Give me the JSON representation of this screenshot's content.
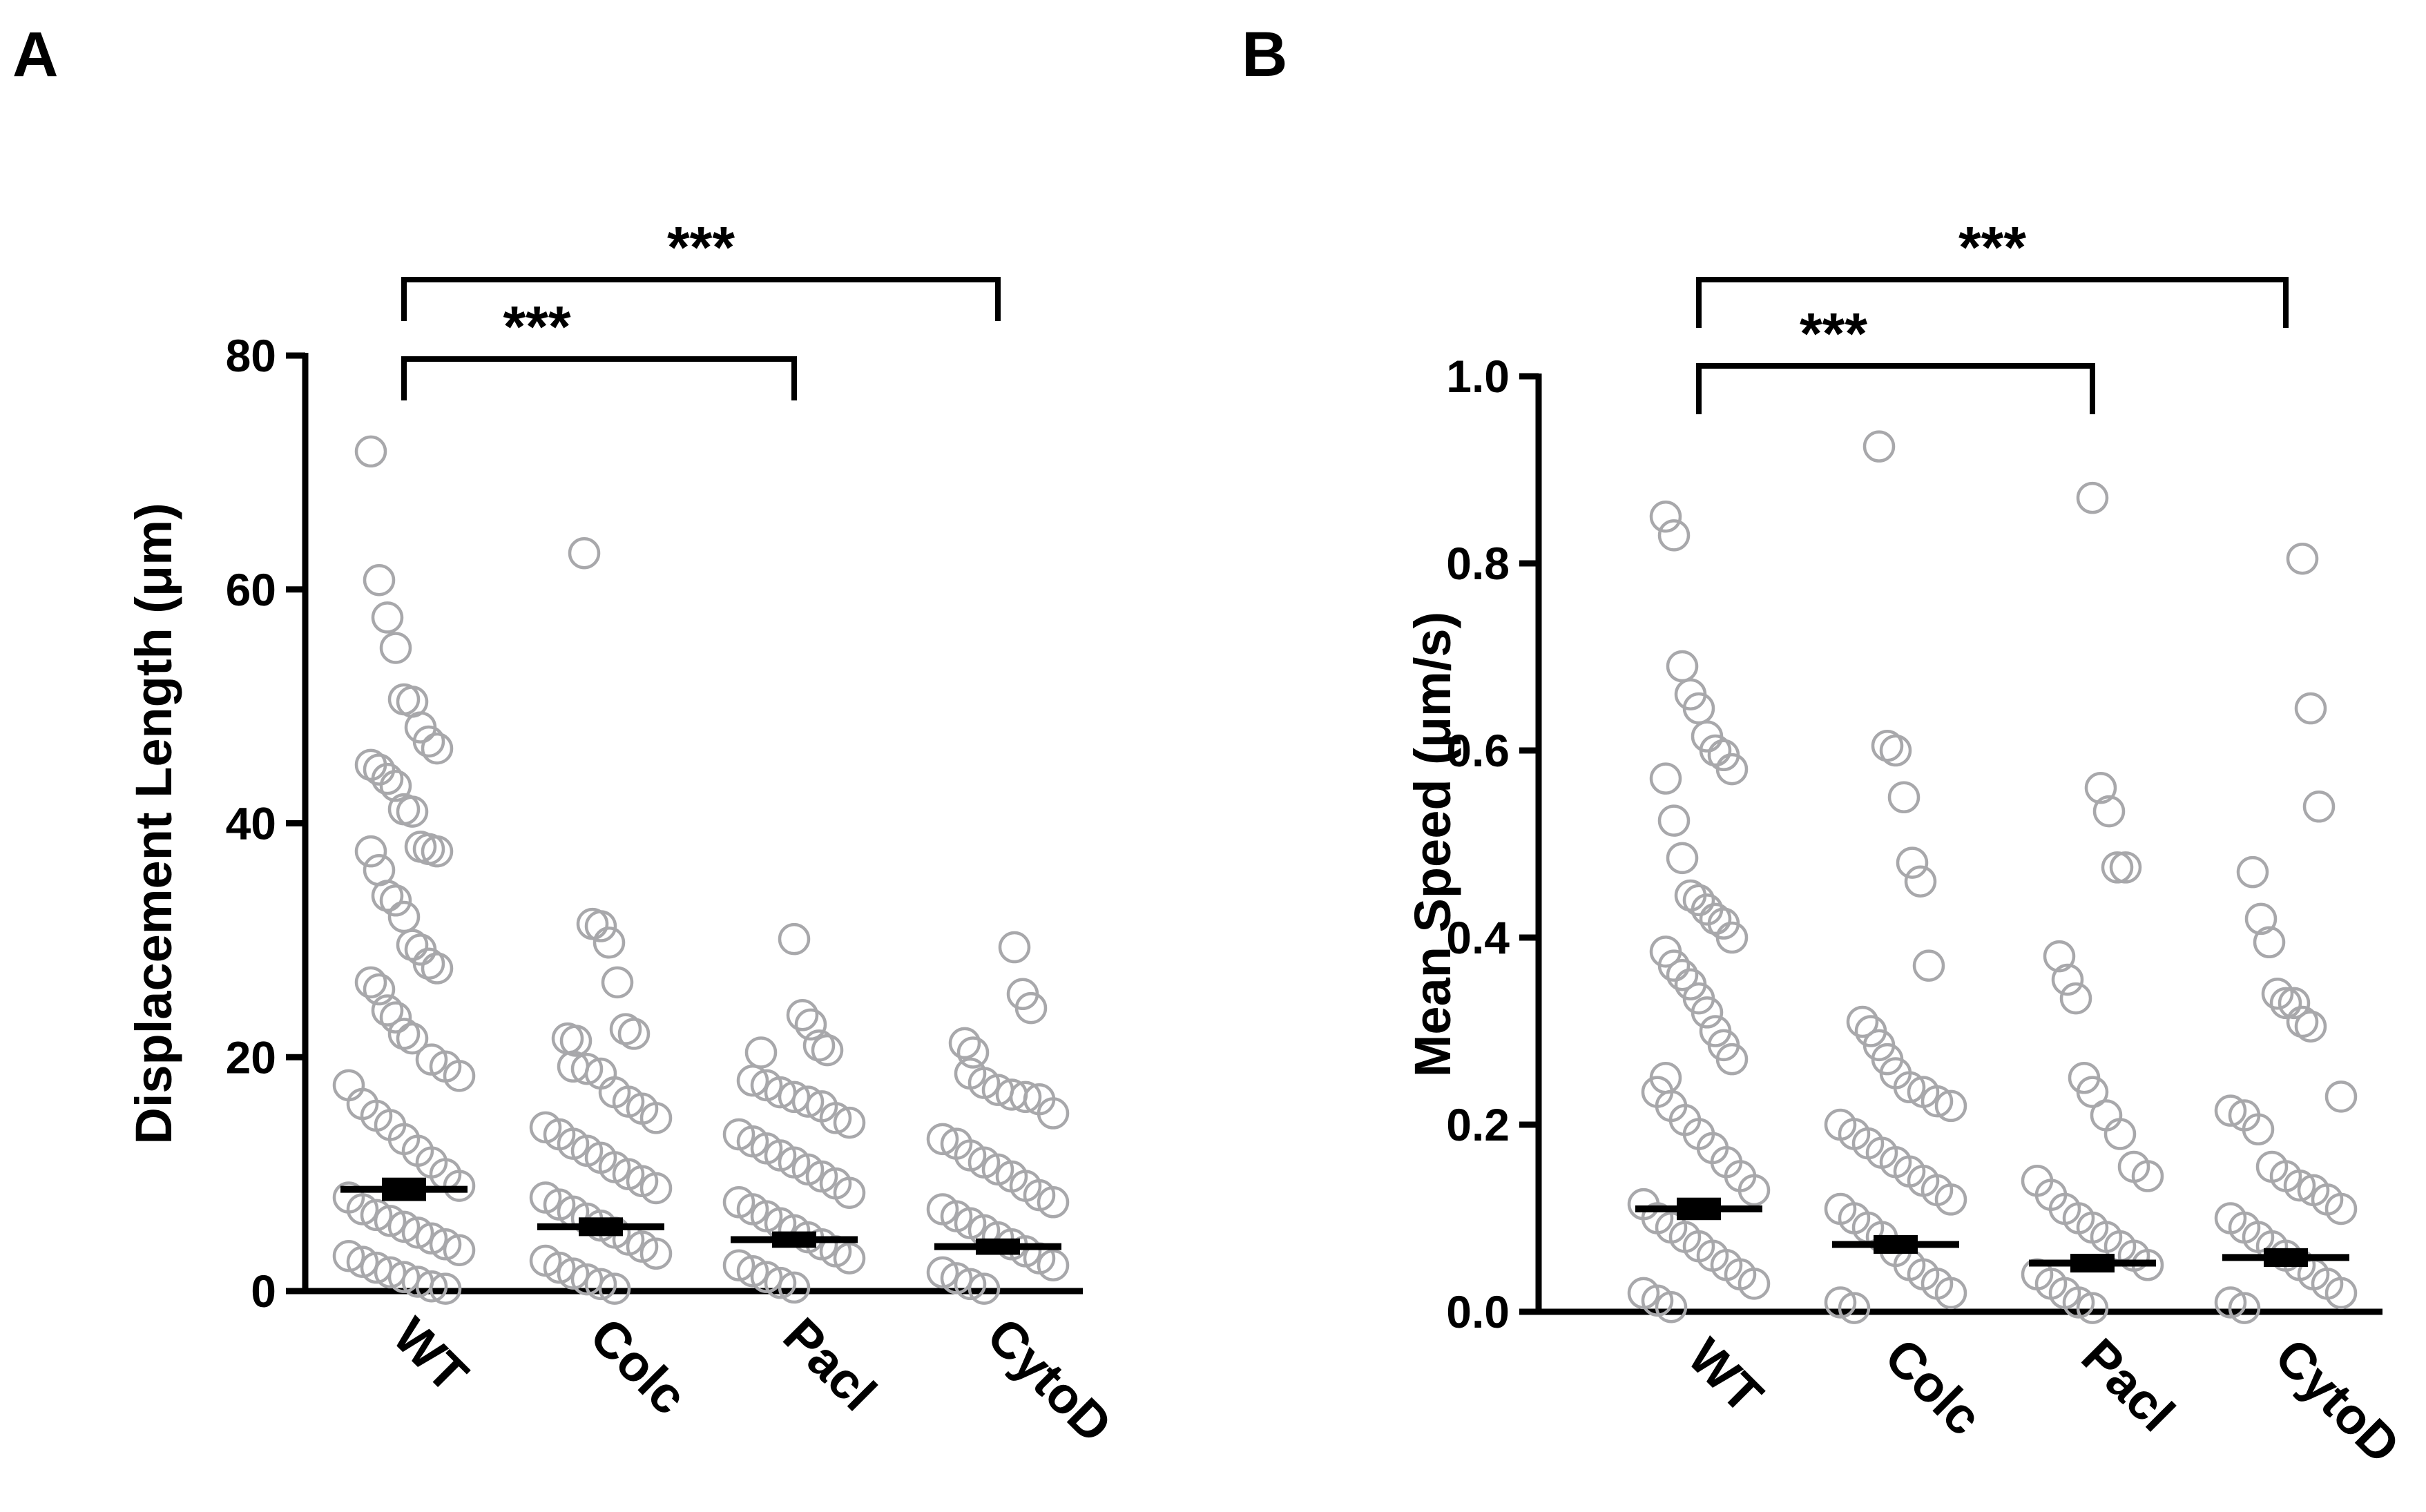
{
  "figure": {
    "panels": [
      {
        "letter": "A"
      },
      {
        "letter": "B"
      }
    ]
  },
  "chart_data": [
    {
      "type": "scatter",
      "panel": "A",
      "title": "",
      "xlabel": "",
      "ylabel": "Displacement Length (μm)",
      "categories": [
        "WT",
        "Colc",
        "Pacl",
        "CytoD"
      ],
      "ylim": [
        0,
        80
      ],
      "yticks": [
        0,
        20,
        40,
        60,
        80
      ],
      "grid": false,
      "marker_color": "#a8a8ab",
      "series": [
        {
          "name": "WT",
          "mean": 8.7,
          "sem": 1.0,
          "values": [
            71.8,
            60.8,
            57.6,
            55.0,
            50.6,
            50.4,
            48.2,
            47.0,
            46.4,
            45.0,
            44.6,
            43.8,
            43.2,
            41.2,
            41.0,
            38.0,
            37.8,
            37.6,
            37.6,
            36.0,
            33.8,
            33.4,
            32.0,
            29.6,
            29.2,
            28.0,
            27.6,
            26.4,
            25.8,
            24.0,
            23.4,
            22.0,
            21.6,
            19.8,
            19.2,
            18.4,
            17.6,
            16.0,
            15.0,
            14.2,
            13.0,
            12.0,
            11.0,
            10.0,
            9.0,
            8.0,
            7.0,
            6.5,
            6.0,
            5.5,
            5.0,
            4.5,
            4.0,
            3.5,
            3.0,
            2.5,
            2.0,
            1.6,
            1.2,
            0.8,
            0.4,
            0.2
          ]
        },
        {
          "name": "Colc",
          "mean": 5.5,
          "sem": 0.8,
          "values": [
            63.1,
            31.4,
            31.2,
            29.8,
            26.4,
            22.4,
            22.0,
            21.6,
            21.4,
            19.2,
            19.0,
            18.6,
            17.0,
            16.2,
            15.6,
            14.8,
            14.0,
            13.4,
            12.6,
            12.0,
            11.4,
            10.6,
            10.0,
            9.4,
            8.8,
            8.0,
            7.4,
            6.8,
            6.2,
            5.6,
            5.0,
            4.4,
            3.8,
            3.2,
            2.6,
            2.0,
            1.5,
            1.0,
            0.6,
            0.2
          ]
        },
        {
          "name": "Pacl",
          "mean": 4.4,
          "sem": 0.7,
          "values": [
            30.1,
            23.6,
            22.8,
            21.0,
            20.6,
            20.4,
            18.0,
            17.6,
            17.0,
            16.6,
            16.2,
            15.8,
            14.8,
            14.4,
            13.4,
            12.8,
            12.2,
            11.6,
            11.0,
            10.4,
            9.8,
            9.2,
            8.4,
            7.6,
            7.0,
            6.4,
            5.8,
            5.2,
            4.6,
            4.0,
            3.4,
            2.8,
            2.2,
            1.7,
            1.2,
            0.7,
            0.3
          ]
        },
        {
          "name": "CytoD",
          "mean": 3.8,
          "sem": 0.7,
          "values": [
            29.4,
            25.4,
            24.2,
            21.2,
            20.4,
            18.6,
            17.8,
            17.2,
            16.8,
            16.6,
            16.4,
            15.2,
            13.0,
            12.6,
            11.6,
            11.0,
            10.4,
            9.8,
            9.0,
            8.2,
            7.6,
            7.0,
            6.4,
            5.8,
            5.2,
            4.6,
            4.0,
            3.4,
            2.8,
            2.2,
            1.6,
            1.1,
            0.6,
            0.2
          ]
        }
      ],
      "annotations": [
        {
          "text": "***",
          "from": "WT",
          "to": "Pacl",
          "level": 80
        },
        {
          "text": "***",
          "from": "WT",
          "to": "CytoD",
          "level": 86
        }
      ]
    },
    {
      "type": "scatter",
      "panel": "B",
      "title": "",
      "xlabel": "",
      "ylabel": "Mean Speed (μm/s)",
      "categories": [
        "WT",
        "Colc",
        "Pacl",
        "CytoD"
      ],
      "ylim": [
        0,
        1.0
      ],
      "yticks": [
        0.0,
        0.2,
        0.4,
        0.6,
        0.8,
        1.0
      ],
      "ytick_labels": [
        "0.0",
        "0.2",
        "0.4",
        "0.6",
        "0.8",
        "1.0"
      ],
      "grid": false,
      "marker_color": "#a8a8ab",
      "series": [
        {
          "name": "WT",
          "mean": 0.11,
          "sem": 0.012,
          "values": [
            0.85,
            0.83,
            0.69,
            0.66,
            0.645,
            0.615,
            0.6,
            0.595,
            0.58,
            0.57,
            0.525,
            0.485,
            0.445,
            0.44,
            0.43,
            0.42,
            0.415,
            0.4,
            0.385,
            0.37,
            0.36,
            0.35,
            0.335,
            0.32,
            0.3,
            0.285,
            0.27,
            0.25,
            0.235,
            0.22,
            0.205,
            0.19,
            0.175,
            0.16,
            0.145,
            0.13,
            0.115,
            0.1,
            0.09,
            0.08,
            0.07,
            0.06,
            0.05,
            0.04,
            0.03,
            0.02,
            0.012,
            0.005
          ]
        },
        {
          "name": "Colc",
          "mean": 0.072,
          "sem": 0.01,
          "values": [
            0.925,
            0.605,
            0.6,
            0.55,
            0.48,
            0.46,
            0.37,
            0.31,
            0.3,
            0.285,
            0.27,
            0.255,
            0.24,
            0.235,
            0.225,
            0.22,
            0.2,
            0.19,
            0.18,
            0.17,
            0.16,
            0.15,
            0.14,
            0.13,
            0.12,
            0.11,
            0.1,
            0.09,
            0.08,
            0.065,
            0.05,
            0.04,
            0.03,
            0.02,
            0.01,
            0.004
          ]
        },
        {
          "name": "Pacl",
          "mean": 0.052,
          "sem": 0.01,
          "values": [
            0.87,
            0.56,
            0.535,
            0.475,
            0.475,
            0.38,
            0.355,
            0.335,
            0.25,
            0.235,
            0.21,
            0.19,
            0.155,
            0.145,
            0.14,
            0.125,
            0.11,
            0.1,
            0.09,
            0.08,
            0.07,
            0.06,
            0.05,
            0.04,
            0.03,
            0.02,
            0.01,
            0.004
          ]
        },
        {
          "name": "CytoD",
          "mean": 0.058,
          "sem": 0.01,
          "values": [
            0.805,
            0.645,
            0.54,
            0.47,
            0.42,
            0.395,
            0.34,
            0.33,
            0.33,
            0.31,
            0.305,
            0.23,
            0.215,
            0.21,
            0.195,
            0.155,
            0.145,
            0.135,
            0.13,
            0.12,
            0.11,
            0.1,
            0.09,
            0.08,
            0.07,
            0.06,
            0.05,
            0.04,
            0.03,
            0.02,
            0.01,
            0.004
          ]
        }
      ],
      "annotations": [
        {
          "text": "***",
          "from": "WT",
          "to": "Pacl",
          "level": 1.0
        },
        {
          "text": "***",
          "from": "WT",
          "to": "CytoD",
          "level": 1.1
        }
      ]
    }
  ]
}
